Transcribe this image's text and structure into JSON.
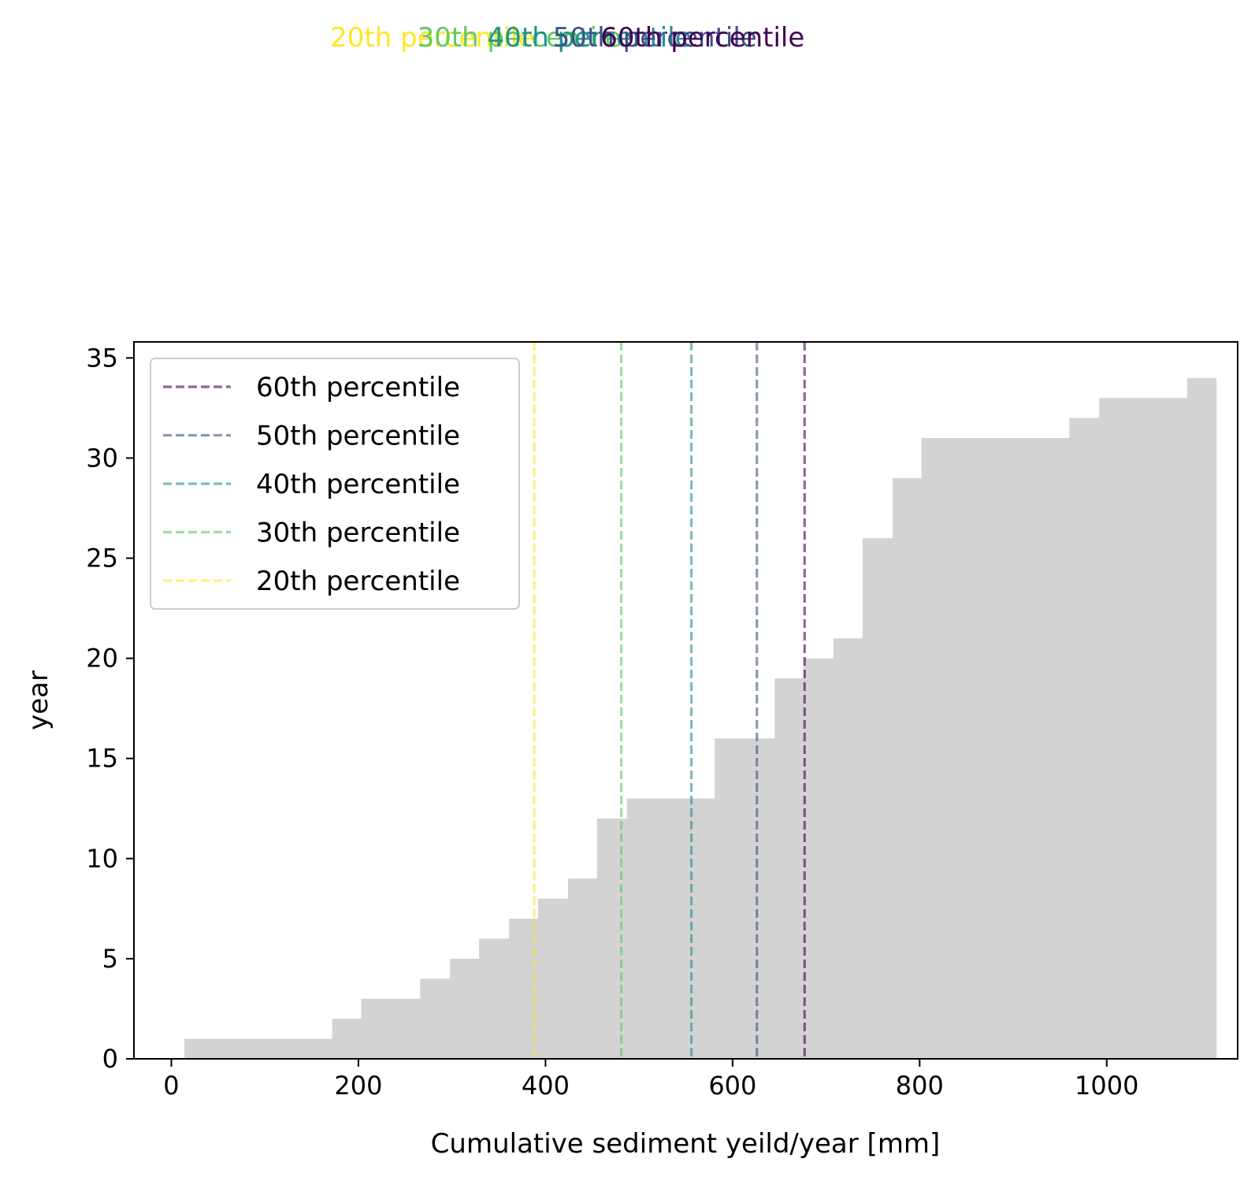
{
  "chart_data": {
    "type": "bar",
    "subtype": "cumulative-histogram",
    "xlabel": "Cumulative sediment yeild/year [mm]",
    "ylabel": "year",
    "xlim": [
      -40,
      1140
    ],
    "ylim": [
      0,
      35.8
    ],
    "xticks": [
      0,
      200,
      400,
      600,
      800,
      1000
    ],
    "xtick_labels": [
      "0",
      "200",
      "400",
      "600",
      "800",
      "1000"
    ],
    "yticks": [
      0,
      5,
      10,
      15,
      20,
      25,
      30,
      35
    ],
    "ytick_labels": [
      "0",
      "5",
      "10",
      "15",
      "20",
      "25",
      "30",
      "35"
    ],
    "grid": false,
    "legend_position": "upper-left",
    "bar_color": "#d3d3d3",
    "bins": {
      "edges": [
        14,
        45,
        77,
        108,
        140,
        172,
        203,
        235,
        266,
        298,
        329,
        361,
        392,
        424,
        455,
        487,
        518,
        550,
        581,
        613,
        645,
        676,
        708,
        739,
        771,
        802,
        834,
        865,
        897,
        929,
        960,
        992,
        1023,
        1055,
        1086
      ],
      "counts": [
        1,
        1,
        1,
        1,
        1,
        2,
        3,
        3,
        4,
        5,
        6,
        7,
        8,
        9,
        12,
        13,
        13,
        13,
        16,
        16,
        19,
        20,
        21,
        26,
        29,
        31,
        31,
        31,
        31,
        31,
        32,
        33,
        33,
        33,
        34
      ]
    },
    "percentiles": [
      {
        "name": "60th percentile",
        "value": 677,
        "color": "#440154"
      },
      {
        "name": "50th percentile",
        "value": 626,
        "color": "#3b528b"
      },
      {
        "name": "40th percentile",
        "value": 556,
        "color": "#21918c"
      },
      {
        "name": "30th percentile",
        "value": 481,
        "color": "#5ec962"
      },
      {
        "name": "20th percentile",
        "value": 388,
        "color": "#fde725"
      }
    ],
    "top_labels": [
      {
        "text": "20th percentile",
        "color": "#fde725"
      },
      {
        "text": "30th percentile",
        "color": "#5ec962"
      },
      {
        "text": "40th percentile",
        "color": "#21918c"
      },
      {
        "text": "50th percentile",
        "color": "#3b528b"
      },
      {
        "text": "60th percentile",
        "color": "#440154"
      }
    ]
  }
}
